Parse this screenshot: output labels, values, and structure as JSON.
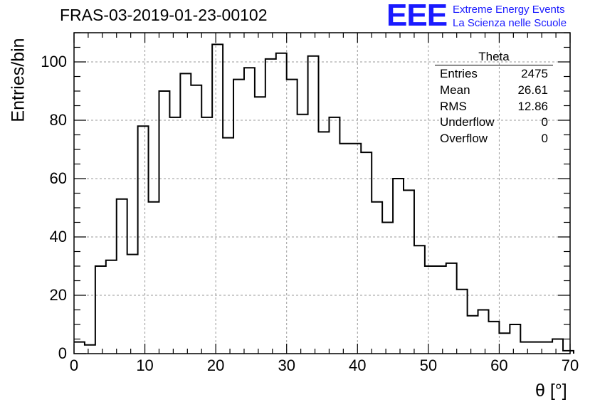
{
  "title": "FRAS-03-2019-01-23-00102",
  "logo": {
    "mark": "EEE",
    "line1": "Extreme Energy Events",
    "line2": "La Scienza nelle Scuole",
    "color": "#1a1aff"
  },
  "stats_box": {
    "title": "Theta",
    "rows": [
      {
        "label": "Entries",
        "value": "2475"
      },
      {
        "label": "Mean",
        "value": "26.61"
      },
      {
        "label": "RMS",
        "value": "12.86"
      },
      {
        "label": "Underflow",
        "value": "0"
      },
      {
        "label": "Overflow",
        "value": "0"
      }
    ]
  },
  "chart_data": {
    "type": "bar",
    "histogram": true,
    "xlabel": "θ [°]",
    "ylabel": "Entries/bin",
    "xlim": [
      0,
      70
    ],
    "ylim": [
      0,
      110
    ],
    "grid": true,
    "x_ticks": [
      "0",
      "10",
      "20",
      "30",
      "40",
      "50",
      "60",
      "70"
    ],
    "y_ticks": [
      "0",
      "20",
      "40",
      "60",
      "80",
      "100"
    ],
    "bin_width": 1.5,
    "bin_edges_start": 0,
    "values": [
      4,
      3,
      30,
      32,
      53,
      34,
      78,
      52,
      90,
      81,
      96,
      92,
      81,
      106,
      74,
      94,
      98,
      88,
      101,
      103,
      94,
      82,
      102,
      76,
      81,
      72,
      72,
      69,
      52,
      45,
      60,
      56,
      37,
      30,
      30,
      31,
      22,
      13,
      15,
      11,
      7,
      10,
      4,
      4,
      4,
      5,
      1
    ]
  }
}
